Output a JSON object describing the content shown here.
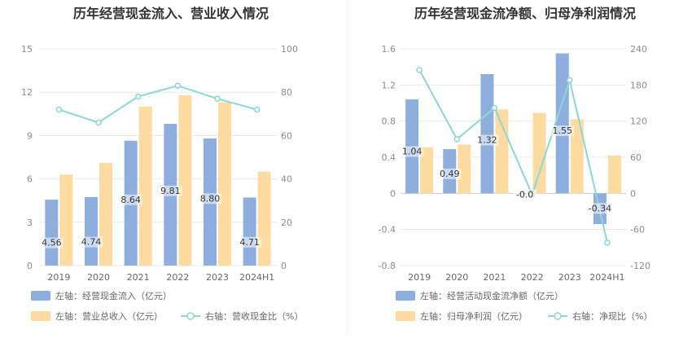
{
  "chart_data": [
    {
      "type": "bar",
      "title": "历年经营现金流入、营业收入情况",
      "categories": [
        "2019",
        "2020",
        "2021",
        "2022",
        "2023",
        "2024H1"
      ],
      "left_axis": {
        "ylim": [
          0,
          15
        ],
        "ticks": [
          "0",
          "3",
          "6",
          "9",
          "12",
          "15"
        ]
      },
      "right_axis": {
        "ylim": [
          0,
          100
        ],
        "ticks": [
          "0",
          "20",
          "40",
          "60",
          "80",
          "100"
        ]
      },
      "grid": true,
      "legend_position": "bottom-left",
      "series": [
        {
          "name": "左轴：经营现金流入（亿元）",
          "kind": "bar",
          "axis": "left",
          "color": "#8eaedd",
          "values": [
            4.56,
            4.74,
            8.64,
            9.81,
            8.8,
            4.71
          ],
          "labels": [
            "4.56",
            "4.74",
            "8.64",
            "9.81",
            "8.80",
            "4.71"
          ]
        },
        {
          "name": "左轴：营业总收入（亿元）",
          "kind": "bar",
          "axis": "left",
          "color": "#fddba1",
          "values": [
            6.3,
            7.1,
            11.0,
            11.8,
            11.3,
            6.5
          ]
        },
        {
          "name": "右轴：营收现金比（%）",
          "kind": "line",
          "axis": "right",
          "color": "#8dd6d8",
          "values": [
            72,
            66,
            78,
            83,
            77,
            72
          ]
        }
      ]
    },
    {
      "type": "bar",
      "title": "历年经营现金流净额、归母净利润情况",
      "categories": [
        "2019",
        "2020",
        "2021",
        "2022",
        "2023",
        "2024H1"
      ],
      "left_axis": {
        "ylim": [
          -0.8,
          1.6
        ],
        "ticks": [
          "-0.8",
          "-0.4",
          "0",
          "0.4",
          "0.8",
          "1.2",
          "1.6"
        ]
      },
      "right_axis": {
        "ylim": [
          -120,
          240
        ],
        "ticks": [
          "-120",
          "-60",
          "0",
          "60",
          "120",
          "180",
          "240"
        ]
      },
      "grid": true,
      "legend_position": "bottom-left",
      "series": [
        {
          "name": "左轴：经营活动现金流净额（亿元）",
          "kind": "bar",
          "axis": "left",
          "color": "#8eaedd",
          "values": [
            1.04,
            0.49,
            1.32,
            -0.01,
            1.55,
            -0.34
          ],
          "labels": [
            "1.04",
            "0.49",
            "1.32",
            "-0.0",
            "1.55",
            "-0.34"
          ]
        },
        {
          "name": "左轴：归母净利润（亿元）",
          "kind": "bar",
          "axis": "left",
          "color": "#fddba1",
          "values": [
            0.51,
            0.54,
            0.93,
            0.89,
            0.82,
            0.42
          ]
        },
        {
          "name": "右轴：净现比（%）",
          "kind": "line",
          "axis": "right",
          "color": "#8dd6d8",
          "values": [
            205,
            90,
            142,
            -2,
            188,
            -82
          ]
        }
      ]
    }
  ]
}
